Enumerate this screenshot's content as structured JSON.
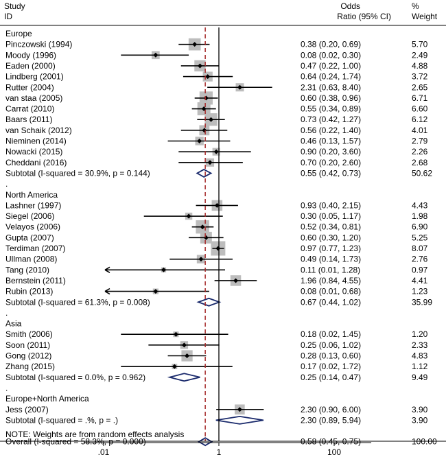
{
  "header": {
    "study_line1": "Study",
    "study_line2": "ID",
    "or_line1": "Odds",
    "or_line2": "Ratio (95% CI)",
    "weight_line1": "%",
    "weight_line2": "Weight"
  },
  "note": "NOTE: Weights are from random effects analysis",
  "colors": {
    "box": "#bdbdbd",
    "diamond": "#1a2a6c",
    "null_line": "#000000",
    "overall_line": "#a52a2a"
  },
  "chart_data": {
    "type": "forest",
    "x_scale": "log",
    "x_ticks": [
      0.01,
      1,
      100
    ],
    "x_tick_labels": [
      ".01",
      "1",
      "100"
    ],
    "xlim": [
      0.0045,
      440
    ],
    "null_value": 1,
    "overall_line_value": 0.58,
    "rows": [
      {
        "kind": "group",
        "label": "Europe"
      },
      {
        "kind": "study",
        "label": "Pinczowski (1994)",
        "or": 0.38,
        "lo": 0.2,
        "hi": 0.69,
        "ci": "0.38 (0.20, 0.69)",
        "weight": "5.70"
      },
      {
        "kind": "study",
        "label": "Moody (1996)",
        "or": 0.08,
        "lo": 0.02,
        "hi": 0.3,
        "ci": "0.08 (0.02, 0.30)",
        "weight": "2.49"
      },
      {
        "kind": "study",
        "label": "Eaden (2000)",
        "or": 0.47,
        "lo": 0.22,
        "hi": 1.0,
        "ci": "0.47 (0.22, 1.00)",
        "weight": "4.88"
      },
      {
        "kind": "study",
        "label": "Lindberg (2001)",
        "or": 0.64,
        "lo": 0.24,
        "hi": 1.74,
        "ci": "0.64 (0.24, 1.74)",
        "weight": "3.72"
      },
      {
        "kind": "study",
        "label": "Rutter (2004)",
        "or": 2.31,
        "lo": 0.63,
        "hi": 8.4,
        "ci": "2.31 (0.63, 8.40)",
        "weight": "2.65"
      },
      {
        "kind": "study",
        "label": "van staa (2005)",
        "or": 0.6,
        "lo": 0.38,
        "hi": 0.96,
        "ci": "0.60 (0.38, 0.96)",
        "weight": "6.71"
      },
      {
        "kind": "study",
        "label": "Carrat (2010)",
        "or": 0.55,
        "lo": 0.34,
        "hi": 0.89,
        "ci": "0.55 (0.34, 0.89)",
        "weight": "6.60"
      },
      {
        "kind": "study",
        "label": "Baars (2011)",
        "or": 0.73,
        "lo": 0.42,
        "hi": 1.27,
        "ci": "0.73 (0.42, 1.27)",
        "weight": "6.12"
      },
      {
        "kind": "study",
        "label": "van Schaik (2012)",
        "or": 0.56,
        "lo": 0.22,
        "hi": 1.4,
        "ci": "0.56 (0.22, 1.40)",
        "weight": "4.01"
      },
      {
        "kind": "study",
        "label": "Nieminen (2014)",
        "or": 0.46,
        "lo": 0.13,
        "hi": 1.57,
        "ci": "0.46 (0.13, 1.57)",
        "weight": "2.79"
      },
      {
        "kind": "study",
        "label": "Nowacki (2015)",
        "or": 0.9,
        "lo": 0.2,
        "hi": 3.6,
        "ci": "0.90 (0.20, 3.60)",
        "weight": "2.26"
      },
      {
        "kind": "study",
        "label": "Cheddani (2016)",
        "or": 0.7,
        "lo": 0.2,
        "hi": 2.6,
        "ci": "0.70 (0.20, 2.60)",
        "weight": "2.68"
      },
      {
        "kind": "subtotal",
        "label": "Subtotal  (I-squared = 30.9%, p = 0.144)",
        "or": 0.55,
        "lo": 0.42,
        "hi": 0.73,
        "ci": "0.55 (0.42, 0.73)",
        "weight": "50.62"
      },
      {
        "kind": "dot",
        "label": "."
      },
      {
        "kind": "group",
        "label": "North America"
      },
      {
        "kind": "study",
        "label": "Lashner (1997)",
        "or": 0.93,
        "lo": 0.4,
        "hi": 2.15,
        "ci": "0.93 (0.40, 2.15)",
        "weight": "4.43"
      },
      {
        "kind": "study",
        "label": "Siegel (2006)",
        "or": 0.3,
        "lo": 0.05,
        "hi": 1.17,
        "ci": "0.30 (0.05, 1.17)",
        "weight": "1.98"
      },
      {
        "kind": "study",
        "label": "Velayos (2006)",
        "or": 0.52,
        "lo": 0.34,
        "hi": 0.81,
        "ci": "0.52 (0.34, 0.81)",
        "weight": "6.90"
      },
      {
        "kind": "study",
        "label": "Gupta (2007)",
        "or": 0.6,
        "lo": 0.3,
        "hi": 1.2,
        "ci": "0.60 (0.30, 1.20)",
        "weight": "5.25"
      },
      {
        "kind": "study",
        "label": "Terdiman (2007)",
        "or": 0.97,
        "lo": 0.77,
        "hi": 1.23,
        "ci": "0.97 (0.77, 1.23)",
        "weight": "8.07"
      },
      {
        "kind": "study",
        "label": "Ullman (2008)",
        "or": 0.49,
        "lo": 0.14,
        "hi": 1.73,
        "ci": "0.49 (0.14, 1.73)",
        "weight": "2.76"
      },
      {
        "kind": "study",
        "label": "Tang (2010)",
        "or": 0.11,
        "lo": 0.01,
        "hi": 1.28,
        "ci": "0.11 (0.01, 1.28)",
        "weight": "0.97",
        "arrow_left": true
      },
      {
        "kind": "study",
        "label": "Bernstein (2011)",
        "or": 1.96,
        "lo": 0.84,
        "hi": 4.55,
        "ci": "1.96 (0.84, 4.55)",
        "weight": "4.41"
      },
      {
        "kind": "study",
        "label": "Rubin (2013)",
        "or": 0.08,
        "lo": 0.01,
        "hi": 0.68,
        "ci": "0.08 (0.01, 0.68)",
        "weight": "1.23",
        "arrow_left": true
      },
      {
        "kind": "subtotal",
        "label": "Subtotal  (I-squared = 61.3%, p = 0.008)",
        "or": 0.67,
        "lo": 0.44,
        "hi": 1.02,
        "ci": "0.67 (0.44, 1.02)",
        "weight": "35.99"
      },
      {
        "kind": "dot",
        "label": "."
      },
      {
        "kind": "group",
        "label": "Asia"
      },
      {
        "kind": "study",
        "label": "Smith (2006)",
        "or": 0.18,
        "lo": 0.02,
        "hi": 1.45,
        "ci": "0.18 (0.02, 1.45)",
        "weight": "1.20"
      },
      {
        "kind": "study",
        "label": "Soon (2011)",
        "or": 0.25,
        "lo": 0.06,
        "hi": 1.02,
        "ci": "0.25 (0.06, 1.02)",
        "weight": "2.33"
      },
      {
        "kind": "study",
        "label": "Gong (2012)",
        "or": 0.28,
        "lo": 0.13,
        "hi": 0.6,
        "ci": "0.28 (0.13, 0.60)",
        "weight": "4.83"
      },
      {
        "kind": "study",
        "label": "Zhang (2015)",
        "or": 0.17,
        "lo": 0.02,
        "hi": 1.72,
        "ci": "0.17 (0.02, 1.72)",
        "weight": "1.12"
      },
      {
        "kind": "subtotal",
        "label": "Subtotal  (I-squared = 0.0%, p = 0.962)",
        "or": 0.25,
        "lo": 0.14,
        "hi": 0.47,
        "ci": "0.25 (0.14, 0.47)",
        "weight": "9.49"
      },
      {
        "kind": "dot",
        "label": "."
      },
      {
        "kind": "group",
        "label": "Europe+North America"
      },
      {
        "kind": "study",
        "label": "Jess (2007)",
        "or": 2.3,
        "lo": 0.9,
        "hi": 6.0,
        "ci": "2.30 (0.90, 6.00)",
        "weight": "3.90"
      },
      {
        "kind": "subtotal",
        "label": "Subtotal  (I-squared = .%, p = .)",
        "or": 2.3,
        "lo": 0.89,
        "hi": 5.94,
        "ci": "2.30 (0.89, 5.94)",
        "weight": "3.90"
      },
      {
        "kind": "dot",
        "label": "."
      },
      {
        "kind": "overall",
        "label": "Overall  (I-squared = 58.3%, p = 0.000)",
        "or": 0.58,
        "lo": 0.45,
        "hi": 0.75,
        "ci": "0.58 (0.45, 0.75)",
        "weight": "100.00"
      }
    ]
  }
}
